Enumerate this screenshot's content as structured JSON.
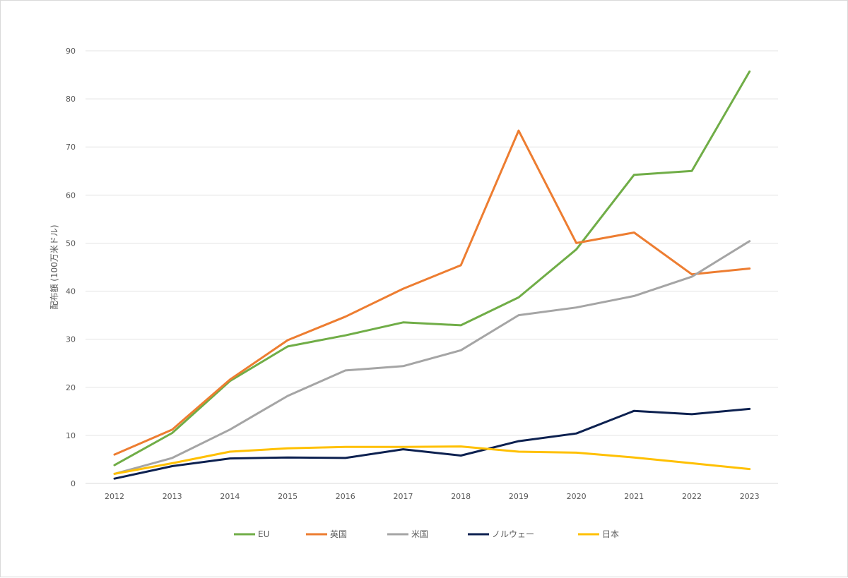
{
  "chart_data": {
    "type": "line",
    "title": "",
    "xlabel": "",
    "ylabel": "配布額 (100万米ドル)",
    "ylim": [
      0,
      90
    ],
    "yticks": [
      0,
      10,
      20,
      30,
      40,
      50,
      60,
      70,
      80,
      90
    ],
    "grid": true,
    "legend_position": "bottom",
    "categories": [
      "2012",
      "2013",
      "2014",
      "2015",
      "2016",
      "2017",
      "2018",
      "2019",
      "2020",
      "2021",
      "2022",
      "2023"
    ],
    "series": [
      {
        "name": "EU",
        "color": "#70ad47",
        "values": [
          3.8,
          10.5,
          21.3,
          28.5,
          30.8,
          33.5,
          32.9,
          38.7,
          48.7,
          64.2,
          65.0,
          85.7
        ]
      },
      {
        "name": "英国",
        "color": "#ed7d31",
        "values": [
          6.0,
          11.2,
          21.6,
          29.8,
          34.7,
          40.5,
          45.4,
          73.4,
          50.0,
          52.2,
          43.5,
          44.7
        ]
      },
      {
        "name": "米国",
        "color": "#a5a5a5",
        "values": [
          2.0,
          5.3,
          11.2,
          18.2,
          23.5,
          24.4,
          27.7,
          35.0,
          36.6,
          39.0,
          43.0,
          50.4
        ]
      },
      {
        "name": "ノルウェー",
        "color": "#0d2150",
        "values": [
          1.0,
          3.6,
          5.2,
          5.4,
          5.3,
          7.1,
          5.8,
          8.8,
          10.4,
          15.1,
          14.4,
          15.5
        ]
      },
      {
        "name": "日本",
        "color": "#ffc000",
        "values": [
          2.0,
          4.2,
          6.6,
          7.3,
          7.6,
          7.6,
          7.7,
          6.6,
          6.4,
          5.4,
          4.2,
          3.0
        ]
      }
    ]
  }
}
